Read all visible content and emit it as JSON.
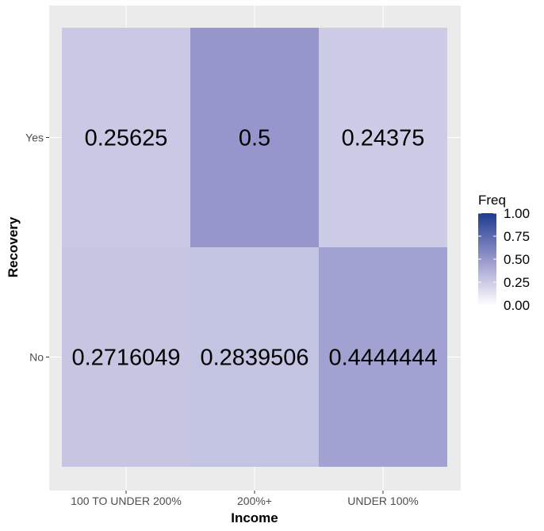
{
  "chart_data": {
    "type": "heatmap",
    "title": "",
    "xlabel": "Income",
    "ylabel": "Recovery",
    "x_categories": [
      "100 TO UNDER 200%",
      "200%+",
      "UNDER 100%"
    ],
    "y_categories": [
      "Yes",
      "No"
    ],
    "cells": [
      {
        "x": "100 TO UNDER 200%",
        "y": "Yes",
        "value": 0.25625,
        "label": "0.25625"
      },
      {
        "x": "200%+",
        "y": "Yes",
        "value": 0.5,
        "label": "0.5"
      },
      {
        "x": "UNDER 100%",
        "y": "Yes",
        "value": 0.24375,
        "label": "0.24375"
      },
      {
        "x": "100 TO UNDER 200%",
        "y": "No",
        "value": 0.2716049,
        "label": "0.2716049"
      },
      {
        "x": "200%+",
        "y": "No",
        "value": 0.2839506,
        "label": "0.2839506"
      },
      {
        "x": "UNDER 100%",
        "y": "No",
        "value": 0.4444444,
        "label": "0.4444444"
      }
    ],
    "legend": {
      "title": "Freq",
      "placement": "right",
      "range": [
        0,
        1
      ],
      "ticks": [
        "1.00",
        "0.75",
        "0.50",
        "0.25",
        "0.00"
      ],
      "tick_values": [
        1.0,
        0.75,
        0.5,
        0.25,
        0.0
      ],
      "low_color": "#ffffff",
      "high_color": "#1f3c8f"
    },
    "panel_background": "#ebebeb",
    "grid": true
  }
}
